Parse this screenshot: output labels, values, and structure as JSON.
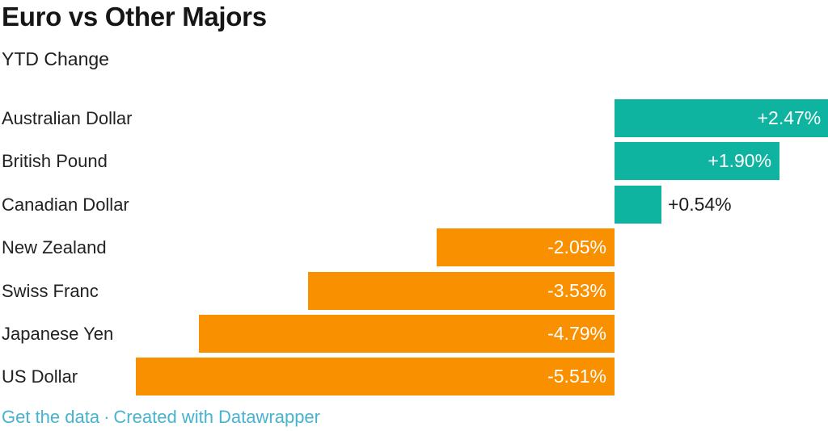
{
  "header": {
    "title": "Euro vs Other Majors",
    "subtitle": "YTD Change"
  },
  "chart_data": {
    "type": "bar",
    "orientation": "horizontal",
    "title": "Euro vs Other Majors",
    "subtitle": "YTD Change",
    "categories": [
      "Australian Dollar",
      "British Pound",
      "Canadian Dollar",
      "New Zealand",
      "Swiss Franc",
      "Japanese Yen",
      "US Dollar"
    ],
    "values": [
      2.47,
      1.9,
      0.54,
      -2.05,
      -3.53,
      -4.79,
      -5.51
    ],
    "value_labels": [
      "+2.47%",
      "+1.90%",
      "+0.54%",
      "-2.05%",
      "-3.53%",
      "-4.79%",
      "-5.51%"
    ],
    "unit": "%",
    "xlim": [
      -5.51,
      2.47
    ],
    "grid": false,
    "legend": false,
    "baseline": 0
  },
  "colors": {
    "positive_bar": "#0eb49f",
    "negative_bar": "#f99000",
    "value_inside_text": "#ffffff",
    "value_outside_text": "#1d1d1d",
    "label_text": "#222222",
    "title_text": "#161616",
    "footer_link": "#47b3cd"
  },
  "footer": {
    "get_data_label": "Get the data",
    "separator": "·",
    "credit_label": "Created with Datawrapper"
  }
}
